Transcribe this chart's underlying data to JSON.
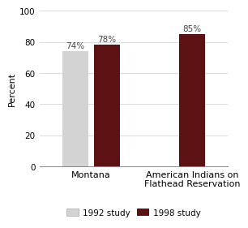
{
  "groups": [
    "Montana",
    "American Indians on\nFlathead Reservation"
  ],
  "values_1992": [
    74,
    null
  ],
  "values_1998": [
    78,
    85
  ],
  "labels_1992": [
    "74%",
    null
  ],
  "labels_1998": [
    "78%",
    "85%"
  ],
  "color_1992": "#d3d3d3",
  "color_1998": "#5c1212",
  "ylabel": "Percent",
  "ylim": [
    0,
    100
  ],
  "yticks": [
    0,
    20,
    40,
    60,
    80,
    100
  ],
  "bar_width": 0.28,
  "legend_labels": [
    "1992 study",
    "1998 study"
  ],
  "label_fontsize": 7.5,
  "axis_fontsize": 8,
  "tick_fontsize": 7.5,
  "bg_color": "#ffffff"
}
